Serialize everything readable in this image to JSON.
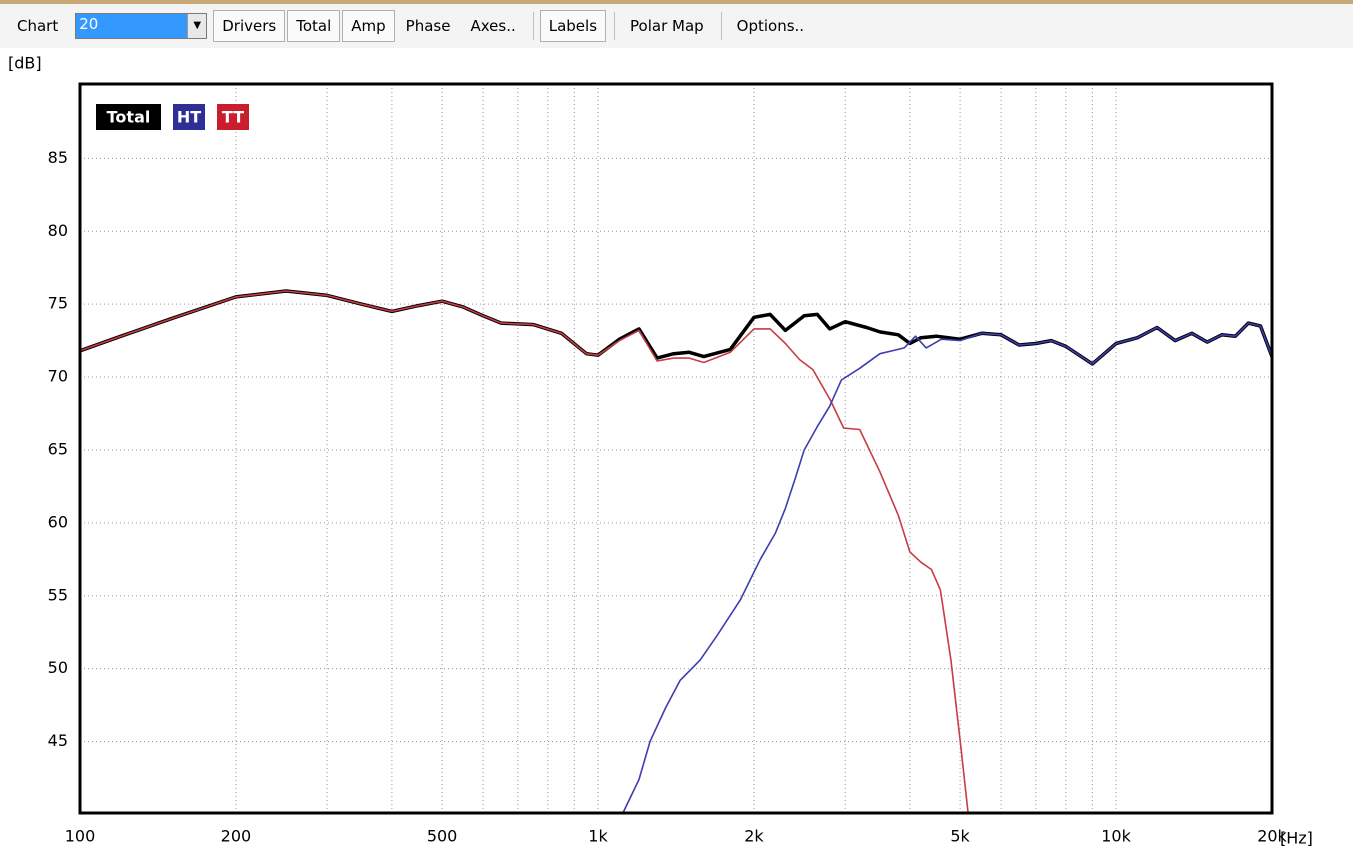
{
  "toolbar": {
    "chart_label": "Chart",
    "combo_value": "20",
    "buttons": [
      "Drivers",
      "Total",
      "Amp",
      "Phase",
      "Axes..",
      "Labels",
      "Polar Map",
      "Options.."
    ]
  },
  "chart_data": {
    "type": "line",
    "xlog": true,
    "grid": true,
    "ylabel": "[dB]",
    "xlabel": "[Hz]",
    "xlim": [
      100,
      20000
    ],
    "ylim": [
      40.1,
      90.1
    ],
    "xticks": [
      100,
      200,
      500,
      {
        "value": 1000,
        "label": "1k"
      },
      {
        "value": 2000,
        "label": "2k"
      },
      {
        "value": 5000,
        "label": "5k"
      },
      {
        "value": 10000,
        "label": "10k"
      },
      {
        "value": 20000,
        "label": "20k"
      }
    ],
    "xminor": [
      300,
      400,
      600,
      700,
      800,
      900,
      3000,
      4000,
      6000,
      7000,
      8000,
      9000
    ],
    "yticks": [
      45,
      50,
      55,
      60,
      65,
      70,
      75,
      80,
      85
    ],
    "series": [
      {
        "name": "Total",
        "color": "#000000",
        "legend_color": "#000000",
        "x": [
          100,
          120,
          150,
          200,
          250,
          300,
          350,
          400,
          450,
          500,
          550,
          600,
          650,
          750,
          850,
          950,
          1000,
          1100,
          1200,
          1300,
          1400,
          1500,
          1600,
          1800,
          2000,
          2150,
          2300,
          2500,
          2650,
          2800,
          3000,
          3300,
          3500,
          3800,
          4000,
          4200,
          4500,
          5000,
          5500,
          6000,
          6500,
          7000,
          7500,
          8000,
          9000,
          10000,
          11000,
          12000,
          13000,
          14000,
          15000,
          16000,
          17000,
          18000,
          19000,
          20000
        ],
        "values": [
          71.8,
          72.8,
          74,
          75.5,
          75.9,
          75.6,
          75,
          74.5,
          74.9,
          75.2,
          74.8,
          74.2,
          73.7,
          73.6,
          73,
          71.6,
          71.5,
          72.6,
          73.3,
          71.3,
          71.6,
          71.7,
          71.4,
          71.9,
          74.1,
          74.3,
          73.2,
          74.2,
          74.3,
          73.3,
          73.8,
          73.4,
          73.1,
          72.9,
          72.3,
          72.7,
          72.8,
          72.6,
          73,
          72.9,
          72.2,
          72.3,
          72.5,
          72.1,
          70.9,
          72.3,
          72.7,
          73.4,
          72.5,
          73,
          72.4,
          72.9,
          72.8,
          73.7,
          73.5,
          71.4
        ]
      },
      {
        "name": "HT",
        "color": "#3d3db0",
        "legend_color": "#2e2e96",
        "x": [
          1117,
          1200,
          1260,
          1350,
          1441,
          1575,
          1700,
          1881,
          2057,
          2200,
          2300,
          2400,
          2500,
          2650,
          2800,
          2950,
          3200,
          3500,
          3900,
          4100,
          4300,
          4600,
          5000,
          5500,
          6000,
          6500,
          7000,
          7500,
          8000,
          9000,
          10000,
          11000,
          12000,
          13000,
          14000,
          15000,
          16000,
          17000,
          18000,
          19000,
          20000
        ],
        "values": [
          40.1,
          42.4,
          45,
          47.3,
          49.2,
          50.6,
          52.3,
          54.7,
          57.5,
          59.3,
          61,
          63,
          65,
          66.6,
          68,
          69.8,
          70.6,
          71.6,
          72,
          72.8,
          72,
          72.6,
          72.5,
          73,
          72.9,
          72.2,
          72.3,
          72.5,
          72.1,
          70.9,
          72.3,
          72.7,
          73.4,
          72.5,
          73,
          72.4,
          72.9,
          72.8,
          73.7,
          73.5,
          71.4
        ]
      },
      {
        "name": "TT",
        "color": "#c83c46",
        "legend_color": "#c81e2d",
        "x": [
          100,
          120,
          150,
          200,
          250,
          300,
          350,
          400,
          450,
          500,
          550,
          600,
          650,
          750,
          850,
          950,
          1000,
          1100,
          1200,
          1300,
          1400,
          1500,
          1600,
          1800,
          2000,
          2150,
          2300,
          2450,
          2600,
          2810,
          2980,
          3200,
          3500,
          3800,
          4000,
          4200,
          4400,
          4580,
          4800,
          5000,
          5180
        ],
        "values": [
          71.8,
          72.8,
          74,
          75.5,
          75.9,
          75.6,
          75,
          74.5,
          74.9,
          75.2,
          74.8,
          74.2,
          73.7,
          73.6,
          73,
          71.6,
          71.5,
          72.5,
          73.2,
          71.1,
          71.3,
          71.3,
          71,
          71.7,
          73.3,
          73.3,
          72.3,
          71.2,
          70.5,
          68.4,
          66.5,
          66.4,
          63.5,
          60.5,
          58,
          57.3,
          56.8,
          55.4,
          50.6,
          45.1,
          40.1
        ]
      }
    ]
  }
}
